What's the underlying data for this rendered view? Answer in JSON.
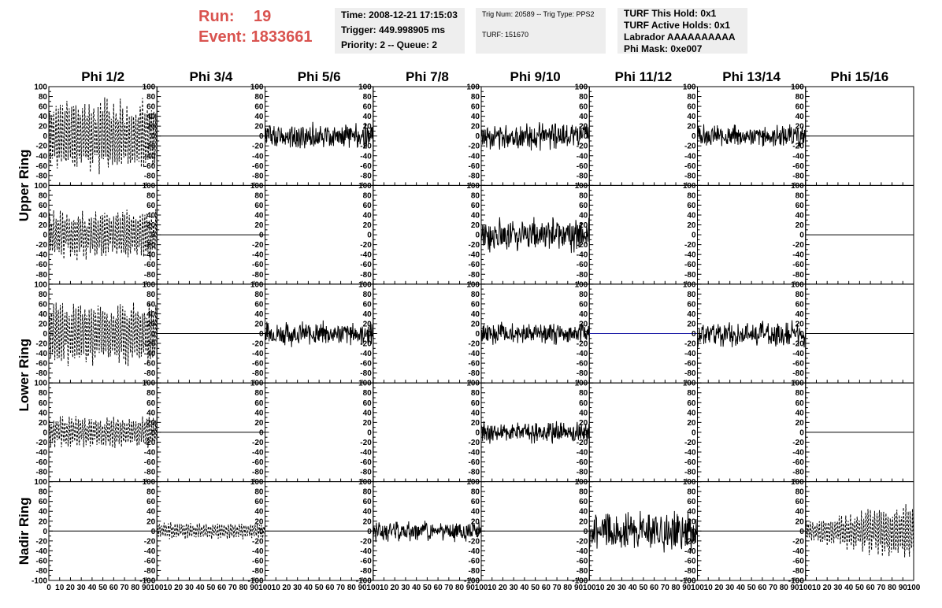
{
  "header": {
    "run_label": "Run:",
    "run_value": "19",
    "event_label": "Event:",
    "event_value": "1833661",
    "time": "Time: 2008-12-21 17:15:03",
    "trigger": "Trigger: 449.998905 ms",
    "priority": "Priority: 2 -- Queue: 2",
    "trig_num": "Trig Num: 20589 -- Trig Type: PPS2",
    "turf": "TURF: 151670",
    "turf_this_hold": "TURF This Hold: 0x1",
    "turf_active_holds": "TURF Active Holds: 0x1",
    "labrador": "Labrador AAAAAAAAAA",
    "phi_mask": "Phi Mask: 0xe007"
  },
  "colors": {
    "run_text": "#d9534f",
    "info_bg": "#eeeeee",
    "trace": "#000000",
    "baseline_blue": "#1a1aa6"
  },
  "chart_data": {
    "type": "line",
    "title": "",
    "columns": [
      "Phi 1/2",
      "Phi 3/4",
      "Phi 5/6",
      "Phi 7/8",
      "Phi 9/10",
      "Phi 11/12",
      "Phi 13/14",
      "Phi 15/16"
    ],
    "ring_labels": [
      "Upper Ring",
      "Lower Ring",
      "Nadir Ring"
    ],
    "rows": 5,
    "xlim": [
      0,
      100
    ],
    "ylim": [
      -100,
      100
    ],
    "xticks": [
      0,
      10,
      20,
      30,
      40,
      50,
      60,
      70,
      80,
      90,
      100
    ],
    "xtick_labels": [
      "0",
      "10",
      "20",
      "30",
      "40",
      "50",
      "60",
      "70",
      "80",
      "90",
      "100"
    ],
    "yticks": [
      -100,
      -80,
      -60,
      -40,
      -20,
      0,
      20,
      40,
      60,
      80,
      100
    ],
    "ytick_labels": [
      "-100",
      "-80",
      "-60",
      "-40",
      "-20",
      "0",
      "20",
      "40",
      "60",
      "80",
      "100"
    ],
    "panels": [
      {
        "row": 0,
        "col": 0,
        "kind": "dashed",
        "amp": 80,
        "seed": 11
      },
      {
        "row": 0,
        "col": 1,
        "kind": "flat"
      },
      {
        "row": 0,
        "col": 2,
        "kind": "solid",
        "amp": 30,
        "seed": 12
      },
      {
        "row": 0,
        "col": 3,
        "kind": "none"
      },
      {
        "row": 0,
        "col": 4,
        "kind": "solid",
        "amp": 30,
        "seed": 13
      },
      {
        "row": 0,
        "col": 5,
        "kind": "none"
      },
      {
        "row": 0,
        "col": 6,
        "kind": "solid",
        "amp": 25,
        "seed": 14
      },
      {
        "row": 0,
        "col": 7,
        "kind": "flat"
      },
      {
        "row": 1,
        "col": 0,
        "kind": "dashed",
        "amp": 55,
        "seed": 21
      },
      {
        "row": 1,
        "col": 1,
        "kind": "flat"
      },
      {
        "row": 1,
        "col": 2,
        "kind": "none"
      },
      {
        "row": 1,
        "col": 3,
        "kind": "none"
      },
      {
        "row": 1,
        "col": 4,
        "kind": "solid",
        "amp": 40,
        "seed": 22
      },
      {
        "row": 1,
        "col": 5,
        "kind": "none"
      },
      {
        "row": 1,
        "col": 6,
        "kind": "none"
      },
      {
        "row": 1,
        "col": 7,
        "kind": "flat"
      },
      {
        "row": 2,
        "col": 0,
        "kind": "dashed",
        "amp": 70,
        "seed": 31
      },
      {
        "row": 2,
        "col": 1,
        "kind": "flat"
      },
      {
        "row": 2,
        "col": 2,
        "kind": "solid",
        "amp": 28,
        "seed": 32
      },
      {
        "row": 2,
        "col": 3,
        "kind": "none"
      },
      {
        "row": 2,
        "col": 4,
        "kind": "solid",
        "amp": 25,
        "seed": 33
      },
      {
        "row": 2,
        "col": 5,
        "kind": "flatblue"
      },
      {
        "row": 2,
        "col": 6,
        "kind": "solid",
        "amp": 30,
        "seed": 34
      },
      {
        "row": 2,
        "col": 7,
        "kind": "flat"
      },
      {
        "row": 3,
        "col": 0,
        "kind": "dashed",
        "amp": 35,
        "seed": 41
      },
      {
        "row": 3,
        "col": 1,
        "kind": "flat"
      },
      {
        "row": 3,
        "col": 2,
        "kind": "none"
      },
      {
        "row": 3,
        "col": 3,
        "kind": "none"
      },
      {
        "row": 3,
        "col": 4,
        "kind": "solid",
        "amp": 25,
        "seed": 42
      },
      {
        "row": 3,
        "col": 5,
        "kind": "none"
      },
      {
        "row": 3,
        "col": 6,
        "kind": "none"
      },
      {
        "row": 3,
        "col": 7,
        "kind": "flat"
      },
      {
        "row": 4,
        "col": 0,
        "kind": "flat"
      },
      {
        "row": 4,
        "col": 1,
        "kind": "dashed",
        "amp": 18,
        "seed": 51
      },
      {
        "row": 4,
        "col": 2,
        "kind": "flat"
      },
      {
        "row": 4,
        "col": 3,
        "kind": "solid",
        "amp": 25,
        "seed": 52
      },
      {
        "row": 4,
        "col": 4,
        "kind": "flat"
      },
      {
        "row": 4,
        "col": 5,
        "kind": "solid",
        "amp": 45,
        "seed": 53
      },
      {
        "row": 4,
        "col": 6,
        "kind": "flat"
      },
      {
        "row": 4,
        "col": 7,
        "kind": "dashed",
        "amp": 70,
        "seed": 54,
        "grow": true
      }
    ]
  }
}
